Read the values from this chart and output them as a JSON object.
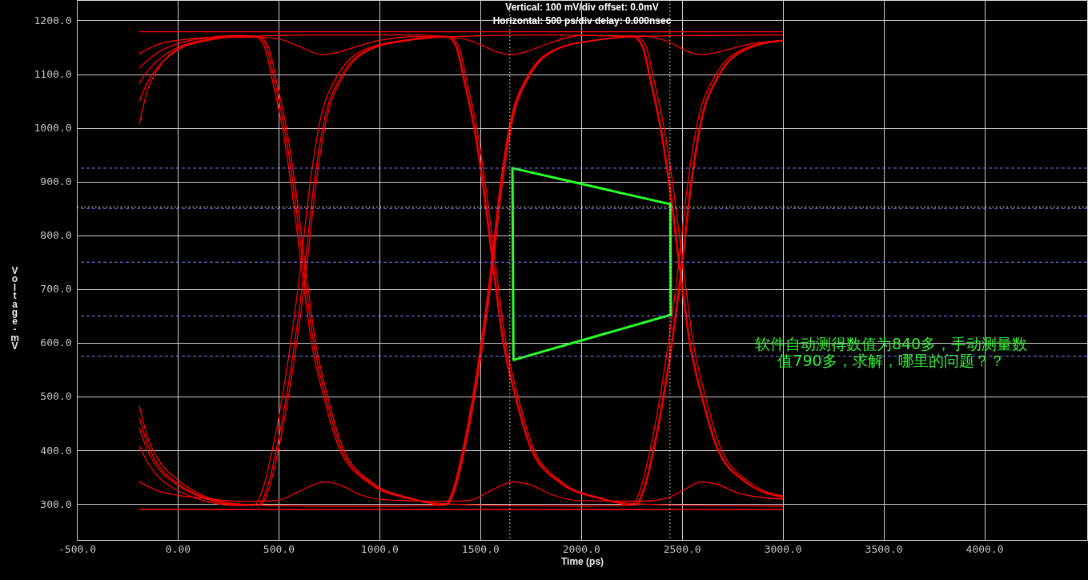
{
  "chart_data": {
    "type": "line",
    "title": "Vertical: 100 mV/div  offset: 0.0mV",
    "subtitle": "Horizontal: 500 ps/div  delay: 0.000nsec",
    "xlabel": "Time  (ps)",
    "ylabel": "Voltage-mV",
    "xlim": [
      -500,
      4510
    ],
    "ylim": [
      233,
      1238
    ],
    "xticks": [
      {
        "value": -500,
        "label": "-500.0"
      },
      {
        "value": 0,
        "label": "0.00"
      },
      {
        "value": 500,
        "label": "500.0"
      },
      {
        "value": 1000,
        "label": "1000.0"
      },
      {
        "value": 1500,
        "label": "1500.0"
      },
      {
        "value": 2000,
        "label": "2000.0"
      },
      {
        "value": 2500,
        "label": "2500.0"
      },
      {
        "value": 3000,
        "label": "3000.0"
      },
      {
        "value": 3500,
        "label": "3500.0"
      },
      {
        "value": 4000,
        "label": "4000.0"
      }
    ],
    "yticks": [
      {
        "value": 300,
        "label": "300.0"
      },
      {
        "value": 400,
        "label": "400.0"
      },
      {
        "value": 500,
        "label": "500.0"
      },
      {
        "value": 600,
        "label": "600.0"
      },
      {
        "value": 700,
        "label": "700.0"
      },
      {
        "value": 800,
        "label": "800.0"
      },
      {
        "value": 900,
        "label": "900.0"
      },
      {
        "value": 1000,
        "label": "1000.0"
      },
      {
        "value": 1100,
        "label": "1100.0"
      },
      {
        "value": 1200,
        "label": "1200.0"
      }
    ],
    "grid": true,
    "series": [
      {
        "color": "#ff0000",
        "x": [
          -190,
          3000
        ],
        "values": [
          1179,
          1179
        ]
      },
      {
        "color": "#ff0000",
        "x": [
          -190,
          3000
        ],
        "values": [
          290,
          290
        ]
      },
      {
        "color": "#ff0000",
        "x": [
          -190,
          -100,
          0,
          150,
          400,
          500,
          600,
          719,
          800,
          900,
          1000,
          1200,
          1400,
          1500,
          1580,
          1650,
          1730,
          1830,
          2000,
          2300,
          2441,
          2520,
          2594,
          2670,
          2748,
          2870,
          3000
        ],
        "values": [
          1138,
          1155,
          1163,
          1168,
          1169,
          1166,
          1152,
          1136,
          1141,
          1153,
          1163,
          1170,
          1167,
          1155,
          1142,
          1136,
          1142,
          1156,
          1172,
          1171,
          1159,
          1144,
          1136,
          1140,
          1148,
          1158,
          1163
        ]
      },
      {
        "color": "#ff0000",
        "x": [
          -190,
          -100,
          0,
          150,
          300,
          400,
          500,
          600,
          728,
          800,
          900,
          1000,
          1150,
          1340,
          1450,
          1560,
          1662,
          1740,
          1850,
          1998,
          2300,
          2420,
          2500,
          2594,
          2670,
          2780,
          2900,
          3000
        ],
        "values": [
          341,
          325,
          316,
          310,
          305,
          305,
          307,
          323,
          341,
          336,
          318,
          309,
          306,
          305,
          307,
          326,
          341,
          337,
          318,
          306,
          305,
          310,
          324,
          341,
          337,
          320,
          312,
          309
        ]
      },
      {
        "color": "#ff0000",
        "x": [
          -190,
          -150,
          -100,
          0,
          150,
          300,
          394,
          439,
          484,
          534,
          574,
          624,
          674,
          734,
          809,
          954,
          1154,
          1333,
          1378,
          1423,
          1473,
          1518,
          1563,
          1608,
          1653,
          1743,
          1893,
          2093,
          2262,
          2307,
          2352,
          2402,
          2442,
          2492,
          2542,
          2602,
          2677,
          2822,
          3000
        ],
        "values": [
          1007,
          1070,
          1108,
          1147,
          1163,
          1170,
          1170,
          1152,
          1080,
          990,
          890,
          740,
          600,
          500,
          405,
          340,
          310,
          298,
          330,
          400,
          500,
          610,
          740,
          890,
          1000,
          1095,
          1148,
          1164,
          1170,
          1152,
          1080,
          990,
          890,
          740,
          600,
          500,
          405,
          340,
          312
        ]
      },
      {
        "color": "#ff0000",
        "x": [
          -190,
          -150,
          -100,
          0,
          150,
          300,
          404,
          449,
          494,
          544,
          584,
          634,
          684,
          744,
          819,
          964,
          1164,
          1323,
          1368,
          1413,
          1463,
          1508,
          1553,
          1598,
          1643,
          1733,
          1883,
          2083,
          2283,
          2600,
          3000
        ],
        "values": [
          1083,
          1105,
          1125,
          1150,
          1165,
          1170,
          1170,
          1152,
          1080,
          990,
          890,
          740,
          600,
          500,
          405,
          340,
          310,
          298,
          330,
          400,
          500,
          610,
          740,
          890,
          1000,
          1095,
          1148,
          1164,
          1170,
          1172,
          1173
        ]
      },
      {
        "color": "#ff0000",
        "x": [
          -190,
          -100,
          0,
          150,
          300,
          384,
          429,
          474,
          524,
          564,
          614,
          664,
          724,
          799,
          944,
          1144,
          1344,
          1650,
          2000,
          2272,
          2317,
          2362,
          2412,
          2457,
          2502,
          2547,
          2592,
          2682,
          2832,
          3000
        ],
        "values": [
          1112,
          1140,
          1157,
          1168,
          1172,
          1170,
          1152,
          1080,
          990,
          890,
          740,
          600,
          500,
          405,
          340,
          310,
          300,
          297,
          296,
          298,
          330,
          400,
          500,
          610,
          740,
          890,
          1000,
          1095,
          1148,
          1162
        ]
      },
      {
        "color": "#ff0000",
        "x": [
          -190,
          -150,
          -100,
          0,
          150,
          300,
          700,
          1100,
          1348,
          1393,
          1438,
          1488,
          1528,
          1578,
          1628,
          1688,
          1763,
          1908,
          2108,
          2252,
          2297,
          2342,
          2392,
          2437,
          2482,
          2527,
          2572,
          2662,
          2812,
          3000
        ],
        "values": [
          1050,
          1085,
          1112,
          1145,
          1163,
          1170,
          1173,
          1173,
          1170,
          1152,
          1080,
          990,
          890,
          740,
          600,
          500,
          405,
          340,
          310,
          298,
          330,
          400,
          500,
          610,
          740,
          890,
          1000,
          1095,
          1148,
          1163
        ]
      },
      {
        "color": "#ff0000",
        "x": [
          -190,
          -150,
          -100,
          0,
          150,
          300,
          399,
          444,
          489,
          539,
          584,
          629,
          674,
          719,
          809,
          959,
          1159,
          1338,
          1383,
          1428,
          1478,
          1518,
          1568,
          1618,
          1678,
          1753,
          1898,
          2098,
          2267,
          2312,
          2357,
          2407,
          2452,
          2497,
          2542,
          2587,
          2677,
          2827,
          3000
        ],
        "values": [
          482,
          425,
          385,
          345,
          312,
          300,
          298,
          330,
          400,
          500,
          610,
          740,
          890,
          1000,
          1095,
          1148,
          1164,
          1170,
          1152,
          1080,
          990,
          890,
          740,
          600,
          500,
          405,
          340,
          310,
          298,
          330,
          400,
          500,
          610,
          740,
          890,
          1000,
          1095,
          1148,
          1162
        ]
      },
      {
        "color": "#ff0000",
        "x": [
          -190,
          -150,
          -100,
          0,
          150,
          300,
          379,
          424,
          469,
          519,
          564,
          609,
          654,
          699,
          789,
          939,
          1139,
          1333,
          1378,
          1423,
          1473,
          1513,
          1563,
          1613,
          1673,
          1748,
          1893,
          2093,
          2293,
          2650,
          3000
        ],
        "values": [
          441,
          400,
          368,
          335,
          308,
          298,
          298,
          330,
          400,
          500,
          610,
          740,
          890,
          1000,
          1095,
          1148,
          1164,
          1170,
          1152,
          1080,
          990,
          890,
          740,
          600,
          500,
          405,
          340,
          310,
          300,
          297,
          296
        ]
      },
      {
        "color": "#ff0000",
        "x": [
          -190,
          -150,
          -100,
          0,
          150,
          300,
          409,
          454,
          499,
          549,
          594,
          639,
          684,
          729,
          819,
          969,
          1169,
          1369,
          1800,
          2257,
          2302,
          2347,
          2397,
          2437,
          2487,
          2537,
          2597,
          2672,
          2817,
          3000
        ],
        "values": [
          408,
          378,
          352,
          325,
          304,
          297,
          298,
          330,
          400,
          500,
          610,
          740,
          890,
          1000,
          1095,
          1148,
          1164,
          1170,
          1173,
          1170,
          1152,
          1080,
          990,
          890,
          740,
          600,
          500,
          405,
          340,
          313
        ]
      },
      {
        "color": "#ff0000",
        "x": [
          -190,
          -150,
          -100,
          0,
          150,
          300,
          700,
          1100,
          1328,
          1373,
          1418,
          1468,
          1513,
          1558,
          1603,
          1648,
          1738,
          1888,
          2088,
          2277,
          2322,
          2367,
          2417,
          2457,
          2507,
          2557,
          2617,
          2692,
          2837,
          3000
        ],
        "values": [
          460,
          412,
          375,
          338,
          310,
          299,
          296,
          296,
          298,
          330,
          400,
          500,
          610,
          740,
          890,
          1000,
          1095,
          1148,
          1164,
          1170,
          1152,
          1080,
          990,
          890,
          740,
          600,
          500,
          405,
          340,
          315
        ]
      },
      {
        "color": "#2bff2b",
        "x": [
          1660,
          1665,
          2445
        ],
        "values": [
          925,
          568,
          652
        ]
      },
      {
        "color": "#2bff2b",
        "x": [
          1660,
          2443,
          2445
        ],
        "values": [
          925,
          858,
          652
        ]
      }
    ],
    "ref_lines": [
      {
        "axis": "y",
        "value": 925,
        "color": "#8080ff",
        "line_style": "dashed"
      },
      {
        "axis": "y",
        "value": 850,
        "color": "#8080ff",
        "line_style": "dashed"
      },
      {
        "axis": "y",
        "value": 853,
        "color": "#ffff99",
        "line_style": "dotted"
      },
      {
        "axis": "y",
        "value": 750,
        "color": "#8080ff",
        "line_style": "dashed"
      },
      {
        "axis": "y",
        "value": 650,
        "color": "#8080ff",
        "line_style": "dashed"
      },
      {
        "axis": "y",
        "value": 575,
        "color": "#8080ff",
        "line_style": "dashed"
      },
      {
        "axis": "x",
        "value": 1647,
        "color": "#ffff99",
        "line_style": "dotted"
      },
      {
        "axis": "x",
        "value": 2441,
        "color": "#ffff99",
        "line_style": "dotted"
      }
    ],
    "annotations": [
      "软件自动测得数值为840多，手动测量数值790多，求解，哪里的问题？？"
    ]
  }
}
